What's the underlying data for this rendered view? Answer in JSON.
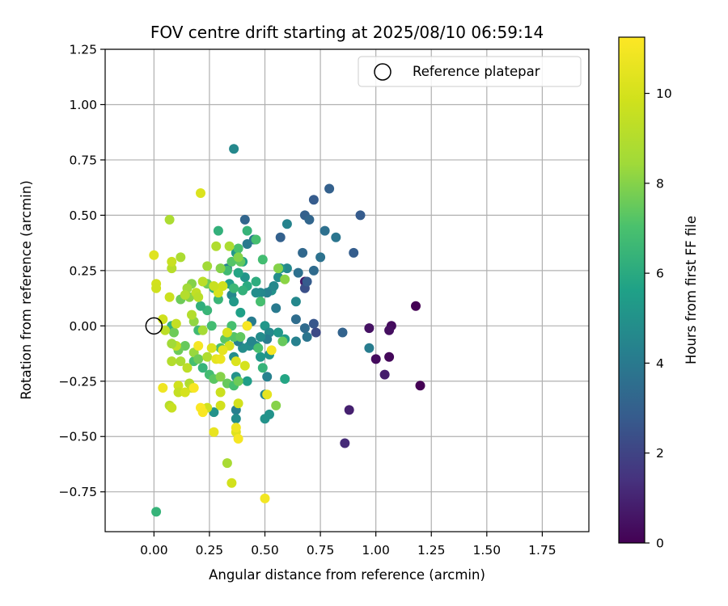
{
  "chart_data": {
    "type": "scatter",
    "title": "FOV centre drift starting at 2025/08/10 06:59:14",
    "xlabel": "Angular distance from reference (arcmin)",
    "ylabel": "Rotation from reference (arcmin)",
    "xlim": [
      -0.22,
      1.96
    ],
    "ylim": [
      -0.93,
      1.25
    ],
    "xticks": [
      "0.00",
      "0.25",
      "0.50",
      "0.75",
      "1.00",
      "1.25",
      "1.50",
      "1.75"
    ],
    "yticks": [
      "1.25",
      "1.00",
      "0.75",
      "0.50",
      "0.25",
      "0.00",
      "−0.25",
      "−0.50",
      "−0.75"
    ],
    "grid": true,
    "legend": {
      "label": "Reference platepar",
      "location": "upper right"
    },
    "reference_point": {
      "x": 0.0,
      "y": 0.0
    },
    "colorbar": {
      "label": "Hours from first FF file",
      "colormap": "viridis",
      "range": [
        0,
        11.25
      ],
      "ticks": [
        "0",
        "2",
        "4",
        "6",
        "8",
        "10"
      ]
    },
    "points": [
      [
        1.18,
        0.09,
        0.0
      ],
      [
        1.2,
        -0.27,
        0.0
      ],
      [
        1.07,
        0.0,
        0.3
      ],
      [
        1.06,
        -0.02,
        0.4
      ],
      [
        1.06,
        -0.14,
        0.2
      ],
      [
        1.0,
        -0.15,
        0.3
      ],
      [
        0.97,
        -0.01,
        0.5
      ],
      [
        1.04,
        -0.22,
        0.8
      ],
      [
        0.88,
        -0.38,
        0.9
      ],
      [
        0.86,
        -0.53,
        1.2
      ],
      [
        0.68,
        0.2,
        0.6
      ],
      [
        0.97,
        -0.1,
        4.1
      ],
      [
        0.93,
        0.5,
        2.8
      ],
      [
        0.9,
        0.33,
        2.9
      ],
      [
        0.85,
        -0.03,
        3.1
      ],
      [
        0.79,
        0.62,
        3.0
      ],
      [
        0.72,
        0.57,
        2.8
      ],
      [
        0.77,
        0.43,
        3.6
      ],
      [
        0.82,
        0.4,
        3.8
      ],
      [
        0.75,
        0.31,
        3.7
      ],
      [
        0.68,
        0.5,
        3.0
      ],
      [
        0.7,
        0.48,
        3.2
      ],
      [
        0.67,
        0.33,
        3.3
      ],
      [
        0.68,
        0.17,
        2.4
      ],
      [
        0.69,
        0.2,
        2.8
      ],
      [
        0.72,
        0.25,
        3.4
      ],
      [
        0.65,
        0.24,
        3.6
      ],
      [
        0.64,
        0.03,
        3.5
      ],
      [
        0.68,
        -0.01,
        3.4
      ],
      [
        0.72,
        0.01,
        2.6
      ],
      [
        0.73,
        -0.03,
        2.2
      ],
      [
        0.69,
        -0.05,
        3.8
      ],
      [
        0.64,
        -0.07,
        4.3
      ],
      [
        0.64,
        0.11,
        4.6
      ],
      [
        0.57,
        0.4,
        3.0
      ],
      [
        0.6,
        0.46,
        4.4
      ],
      [
        0.6,
        0.26,
        4.6
      ],
      [
        0.57,
        0.26,
        5.2
      ],
      [
        0.56,
        0.22,
        4.8
      ],
      [
        0.53,
        0.16,
        5.0
      ],
      [
        0.54,
        0.18,
        4.6
      ],
      [
        0.55,
        0.08,
        4.0
      ],
      [
        0.51,
        0.15,
        4.3
      ],
      [
        0.48,
        0.15,
        4.6
      ],
      [
        0.46,
        0.15,
        4.8
      ],
      [
        0.41,
        0.48,
        3.2
      ],
      [
        0.45,
        0.39,
        3.9
      ],
      [
        0.42,
        0.37,
        4.0
      ],
      [
        0.4,
        0.29,
        5.6
      ],
      [
        0.41,
        0.22,
        5.1
      ],
      [
        0.36,
        0.8,
        4.6
      ],
      [
        0.37,
        0.33,
        5.3
      ],
      [
        0.38,
        0.24,
        5.8
      ],
      [
        0.33,
        0.26,
        4.3
      ],
      [
        0.35,
        0.14,
        4.6
      ],
      [
        0.34,
        0.19,
        5.5
      ],
      [
        0.39,
        0.06,
        5.6
      ],
      [
        0.36,
        0.11,
        5.3
      ],
      [
        0.42,
        0.0,
        5.7
      ],
      [
        0.44,
        0.02,
        4.1
      ],
      [
        0.5,
        0.0,
        5.2
      ],
      [
        0.52,
        -0.03,
        4.6
      ],
      [
        0.56,
        -0.03,
        5.2
      ],
      [
        0.59,
        -0.06,
        5.4
      ],
      [
        0.51,
        -0.06,
        4.1
      ],
      [
        0.48,
        -0.05,
        4.8
      ],
      [
        0.46,
        -0.09,
        4.7
      ],
      [
        0.43,
        -0.09,
        4.8
      ],
      [
        0.4,
        -0.1,
        4.8
      ],
      [
        0.38,
        -0.07,
        4.3
      ],
      [
        0.44,
        -0.07,
        4.5
      ],
      [
        0.48,
        -0.14,
        5.2
      ],
      [
        0.52,
        -0.13,
        5.1
      ],
      [
        0.49,
        -0.19,
        6.4
      ],
      [
        0.42,
        -0.25,
        5.5
      ],
      [
        0.36,
        -0.14,
        4.8
      ],
      [
        0.51,
        -0.23,
        4.3
      ],
      [
        0.5,
        -0.31,
        4.5
      ],
      [
        0.52,
        -0.4,
        5.0
      ],
      [
        0.5,
        -0.42,
        5.0
      ],
      [
        0.59,
        -0.24,
        5.8
      ],
      [
        0.37,
        -0.38,
        4.2
      ],
      [
        0.37,
        -0.42,
        4.8
      ],
      [
        0.37,
        -0.23,
        5.0
      ],
      [
        0.27,
        -0.39,
        5.0
      ],
      [
        0.01,
        -0.84,
        6.4
      ],
      [
        0.29,
        0.43,
        6.3
      ],
      [
        0.42,
        0.43,
        6.4
      ],
      [
        0.46,
        0.39,
        6.9
      ],
      [
        0.49,
        0.3,
        6.8
      ],
      [
        0.38,
        0.35,
        7.0
      ],
      [
        0.39,
        0.29,
        7.4
      ],
      [
        0.35,
        0.29,
        7.2
      ],
      [
        0.33,
        0.25,
        6.7
      ],
      [
        0.46,
        0.2,
        6.1
      ],
      [
        0.42,
        0.18,
        6.0
      ],
      [
        0.4,
        0.16,
        6.3
      ],
      [
        0.36,
        0.17,
        6.6
      ],
      [
        0.29,
        0.12,
        6.5
      ],
      [
        0.27,
        0.17,
        6.4
      ],
      [
        0.24,
        0.07,
        6.5
      ],
      [
        0.21,
        0.09,
        6.2
      ],
      [
        0.26,
        0.0,
        6.8
      ],
      [
        0.2,
        -0.02,
        6.7
      ],
      [
        0.35,
        0.0,
        6.9
      ],
      [
        0.32,
        -0.06,
        7.3
      ],
      [
        0.3,
        -0.1,
        6.9
      ],
      [
        0.36,
        -0.05,
        7.2
      ],
      [
        0.39,
        -0.05,
        7.4
      ],
      [
        0.08,
        0.0,
        6.3
      ],
      [
        0.09,
        -0.03,
        7.6
      ],
      [
        0.14,
        -0.09,
        7.5
      ],
      [
        0.11,
        -0.11,
        7.6
      ],
      [
        0.18,
        -0.16,
        6.9
      ],
      [
        0.18,
        -0.12,
        8.3
      ],
      [
        0.2,
        -0.15,
        7.6
      ],
      [
        0.22,
        -0.19,
        6.4
      ],
      [
        0.25,
        -0.22,
        6.8
      ],
      [
        0.27,
        -0.24,
        7.3
      ],
      [
        0.3,
        -0.23,
        8.0
      ],
      [
        0.33,
        -0.26,
        7.5
      ],
      [
        0.36,
        -0.27,
        6.9
      ],
      [
        0.38,
        -0.25,
        7.6
      ],
      [
        0.55,
        -0.36,
        8.0
      ],
      [
        0.59,
        0.21,
        8.1
      ],
      [
        0.56,
        0.26,
        8.0
      ],
      [
        0.58,
        -0.07,
        7.5
      ],
      [
        0.47,
        -0.1,
        7.0
      ],
      [
        0.48,
        0.11,
        6.9
      ],
      [
        0.38,
        0.31,
        8.0
      ],
      [
        0.34,
        0.36,
        8.8
      ],
      [
        0.28,
        0.36,
        8.9
      ],
      [
        0.24,
        0.27,
        8.5
      ],
      [
        0.3,
        0.26,
        8.0
      ],
      [
        0.24,
        0.19,
        7.6
      ],
      [
        0.17,
        0.19,
        8.0
      ],
      [
        0.12,
        0.12,
        7.6
      ],
      [
        0.16,
        0.13,
        8.1
      ],
      [
        0.12,
        0.31,
        8.8
      ],
      [
        0.07,
        0.48,
        8.8
      ],
      [
        0.08,
        0.26,
        9.1
      ],
      [
        0.15,
        0.17,
        8.5
      ],
      [
        0.18,
        0.02,
        8.2
      ],
      [
        0.22,
        -0.02,
        8.6
      ],
      [
        0.24,
        -0.14,
        8.9
      ],
      [
        0.1,
        -0.09,
        9.4
      ],
      [
        0.08,
        -0.08,
        8.5
      ],
      [
        0.15,
        -0.19,
        9.3
      ],
      [
        0.08,
        -0.16,
        9.0
      ],
      [
        0.12,
        -0.16,
        8.8
      ],
      [
        0.16,
        -0.26,
        8.9
      ],
      [
        0.17,
        -0.28,
        9.3
      ],
      [
        0.11,
        -0.27,
        9.8
      ],
      [
        0.11,
        -0.3,
        9.5
      ],
      [
        0.14,
        -0.3,
        10.0
      ],
      [
        0.07,
        -0.36,
        9.1
      ],
      [
        0.08,
        -0.37,
        9.6
      ],
      [
        0.22,
        -0.38,
        10.0
      ],
      [
        0.24,
        -0.37,
        9.8
      ],
      [
        0.3,
        -0.3,
        9.7
      ],
      [
        0.3,
        -0.36,
        9.9
      ],
      [
        0.38,
        -0.35,
        9.9
      ],
      [
        0.37,
        -0.48,
        10.3
      ],
      [
        0.27,
        -0.48,
        10.6
      ],
      [
        0.33,
        -0.62,
        8.7
      ],
      [
        0.35,
        -0.71,
        9.9
      ],
      [
        0.5,
        -0.78,
        10.9
      ],
      [
        0.53,
        -0.11,
        11.0
      ],
      [
        0.51,
        -0.31,
        10.5
      ],
      [
        0.42,
        0.0,
        11.1
      ],
      [
        0.41,
        -0.18,
        10.0
      ],
      [
        0.37,
        -0.16,
        10.2
      ],
      [
        0.34,
        -0.09,
        10.0
      ],
      [
        0.33,
        -0.03,
        10.1
      ],
      [
        0.31,
        -0.11,
        10.5
      ],
      [
        0.28,
        -0.15,
        10.5
      ],
      [
        0.26,
        -0.1,
        10.2
      ],
      [
        0.29,
        0.15,
        10.0
      ],
      [
        0.31,
        0.18,
        9.8
      ],
      [
        0.27,
        0.18,
        9.6
      ],
      [
        0.22,
        0.2,
        9.2
      ],
      [
        0.19,
        0.15,
        9.4
      ],
      [
        0.2,
        0.13,
        9.2
      ],
      [
        0.14,
        0.14,
        9.0
      ],
      [
        0.17,
        0.05,
        9.0
      ],
      [
        0.1,
        0.01,
        9.5
      ],
      [
        0.05,
        -0.02,
        9.3
      ],
      [
        0.04,
        0.03,
        9.8
      ],
      [
        0.07,
        0.13,
        9.7
      ],
      [
        0.01,
        0.19,
        9.9
      ],
      [
        0.01,
        0.17,
        9.8
      ],
      [
        0.0,
        0.32,
        10.3
      ],
      [
        0.08,
        0.29,
        9.6
      ],
      [
        0.21,
        0.6,
        10.2
      ],
      [
        0.37,
        -0.46,
        10.8
      ],
      [
        0.38,
        -0.51,
        11.0
      ],
      [
        0.3,
        -0.15,
        10.7
      ],
      [
        0.2,
        -0.09,
        11.0
      ],
      [
        0.18,
        -0.28,
        11.1
      ],
      [
        0.21,
        -0.37,
        11.2
      ],
      [
        0.22,
        -0.39,
        11.1
      ],
      [
        0.04,
        -0.28,
        10.8
      ]
    ]
  }
}
